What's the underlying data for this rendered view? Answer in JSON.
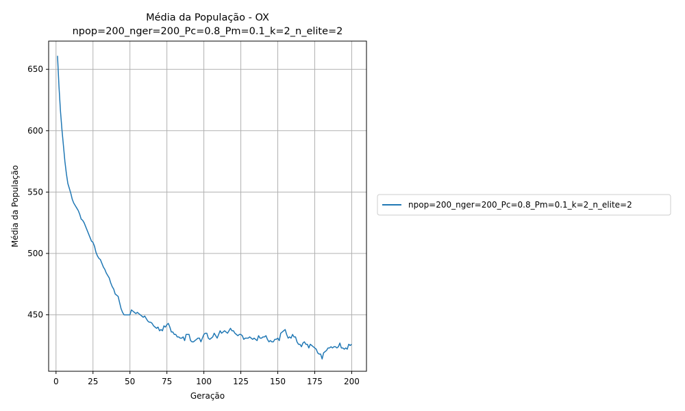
{
  "chart_data": {
    "type": "line",
    "title": "Média da População - OX",
    "subtitle": "npop=200_nger=200_Pc=0.8_Pm=0.1_k=2_n_elite=2",
    "xlabel": "Geração",
    "ylabel": "Média da População",
    "xlim": [
      -5,
      210
    ],
    "ylim": [
      404,
      673
    ],
    "xticks": [
      0,
      25,
      50,
      75,
      100,
      125,
      150,
      175,
      200
    ],
    "yticks": [
      450,
      500,
      550,
      600,
      650
    ],
    "grid": true,
    "legend_position": "outside-right",
    "colors": {
      "series": "#1f77b4",
      "grid": "#b0b0b0"
    },
    "series": [
      {
        "name": "npop=200_nger=200_Pc=0.8_Pm=0.1_k=2_n_elite=2",
        "x": [
          1,
          2,
          3,
          4,
          5,
          6,
          7,
          8,
          9,
          10,
          11,
          12,
          13,
          14,
          15,
          16,
          17,
          18,
          19,
          20,
          21,
          22,
          23,
          24,
          25,
          26,
          27,
          28,
          29,
          30,
          31,
          32,
          33,
          34,
          35,
          36,
          37,
          38,
          39,
          40,
          41,
          42,
          43,
          44,
          45,
          46,
          47,
          48,
          49,
          50,
          51,
          52,
          53,
          54,
          55,
          56,
          57,
          58,
          59,
          60,
          61,
          62,
          63,
          64,
          65,
          66,
          67,
          68,
          69,
          70,
          71,
          72,
          73,
          74,
          75,
          76,
          77,
          78,
          79,
          80,
          81,
          82,
          83,
          84,
          85,
          86,
          87,
          88,
          89,
          90,
          91,
          92,
          93,
          94,
          95,
          96,
          97,
          98,
          99,
          100,
          101,
          102,
          103,
          104,
          105,
          106,
          107,
          108,
          109,
          110,
          111,
          112,
          113,
          114,
          115,
          116,
          117,
          118,
          119,
          120,
          121,
          122,
          123,
          124,
          125,
          126,
          127,
          128,
          129,
          130,
          131,
          132,
          133,
          134,
          135,
          136,
          137,
          138,
          139,
          140,
          141,
          142,
          143,
          144,
          145,
          146,
          147,
          148,
          149,
          150,
          151,
          152,
          153,
          154,
          155,
          156,
          157,
          158,
          159,
          160,
          161,
          162,
          163,
          164,
          165,
          166,
          167,
          168,
          169,
          170,
          171,
          172,
          173,
          174,
          175,
          176,
          177,
          178,
          179,
          180,
          181,
          182,
          183,
          184,
          185,
          186,
          187,
          188,
          189,
          190,
          191,
          192,
          193,
          194,
          195,
          196,
          197,
          198,
          199,
          200
        ],
        "values": [
          661,
          636,
          616,
          601,
          588,
          575,
          565,
          557,
          553,
          549,
          544,
          541,
          539,
          537,
          535,
          532,
          528,
          527,
          525,
          522,
          519,
          516,
          513,
          510,
          509,
          506,
          501,
          498,
          496,
          495,
          492,
          489,
          487,
          484,
          482,
          480,
          476,
          473,
          471,
          467,
          466,
          465,
          460,
          455,
          452,
          450,
          450,
          450,
          450,
          450,
          454,
          453,
          452,
          451,
          452,
          451,
          450,
          449,
          448,
          449,
          447,
          445,
          444,
          444,
          443,
          441,
          440,
          439,
          440,
          437,
          438,
          437,
          441,
          440,
          442,
          443,
          440,
          436,
          436,
          434,
          434,
          432,
          432,
          431,
          431,
          432,
          429,
          434,
          434,
          434,
          429,
          428,
          428,
          429,
          430,
          431,
          431,
          428,
          431,
          434,
          435,
          435,
          431,
          430,
          431,
          432,
          435,
          433,
          431,
          434,
          437,
          435,
          436,
          437,
          436,
          435,
          437,
          439,
          437,
          437,
          435,
          434,
          433,
          434,
          434,
          433,
          430,
          431,
          431,
          431,
          432,
          431,
          430,
          431,
          430,
          429,
          433,
          431,
          431,
          432,
          432,
          433,
          430,
          428,
          429,
          428,
          428,
          430,
          430,
          431,
          429,
          435,
          436,
          437,
          438,
          434,
          431,
          432,
          431,
          434,
          432,
          432,
          428,
          426,
          426,
          424,
          427,
          428,
          426,
          426,
          423,
          426,
          425,
          424,
          423,
          422,
          419,
          418,
          418,
          414,
          419,
          420,
          421,
          423,
          423,
          424,
          423,
          424,
          424,
          423,
          424,
          427,
          423,
          423,
          422,
          423,
          422,
          426,
          425,
          426
        ]
      }
    ]
  }
}
